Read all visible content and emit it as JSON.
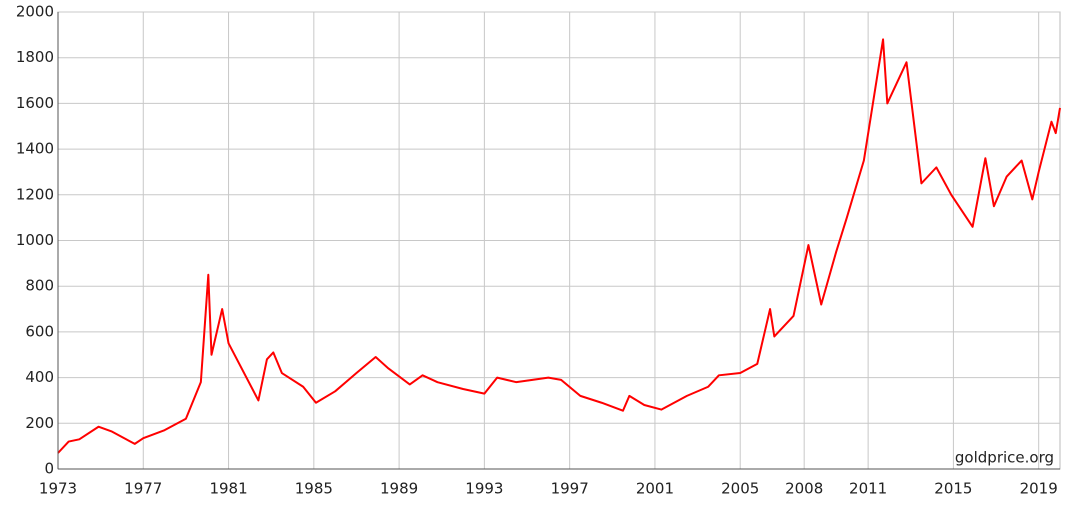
{
  "chart_data": {
    "type": "line",
    "annotation": "goldprice.org",
    "color": "#ff0000",
    "grid": true,
    "x": [
      1973.0,
      1973.5,
      1974.0,
      1974.9,
      1975.5,
      1976.6,
      1977.0,
      1978.0,
      1979.0,
      1979.7,
      1980.05,
      1980.2,
      1980.7,
      1981.0,
      1982.4,
      1982.8,
      1983.1,
      1983.5,
      1984.5,
      1985.1,
      1986.0,
      1987.0,
      1987.9,
      1988.5,
      1989.5,
      1990.1,
      1990.8,
      1992.0,
      1993.0,
      1993.6,
      1994.5,
      1996.0,
      1996.6,
      1997.5,
      1998.5,
      1999.5,
      1999.8,
      2000.5,
      2001.3,
      2002.5,
      2003.5,
      2004.0,
      2005.0,
      2005.8,
      2006.4,
      2006.6,
      2007.5,
      2008.2,
      2008.8,
      2009.5,
      2010.0,
      2010.8,
      2011.7,
      2011.9,
      2012.8,
      2013.5,
      2014.2,
      2014.9,
      2015.9,
      2016.5,
      2016.9,
      2017.5,
      2018.2,
      2018.7,
      2019.0,
      2019.6,
      2019.8,
      2020.0
    ],
    "values": [
      70,
      120,
      130,
      185,
      165,
      110,
      135,
      170,
      220,
      380,
      850,
      500,
      700,
      550,
      300,
      480,
      510,
      420,
      360,
      290,
      340,
      420,
      490,
      440,
      370,
      410,
      380,
      350,
      330,
      400,
      380,
      400,
      390,
      320,
      290,
      255,
      320,
      280,
      260,
      320,
      360,
      410,
      420,
      460,
      700,
      580,
      670,
      980,
      720,
      950,
      1100,
      1350,
      1880,
      1600,
      1780,
      1250,
      1320,
      1200,
      1060,
      1360,
      1150,
      1280,
      1350,
      1180,
      1300,
      1520,
      1470,
      1580
    ],
    "xlim": [
      1973,
      2020
    ],
    "xticks": [
      1973,
      1977,
      1981,
      1985,
      1989,
      1993,
      1997,
      2001,
      2005,
      2008,
      2011,
      2015,
      2019
    ],
    "ylim": [
      0,
      2000
    ],
    "yticks": [
      0,
      200,
      400,
      600,
      800,
      1000,
      1200,
      1400,
      1600,
      1800,
      2000
    ]
  }
}
